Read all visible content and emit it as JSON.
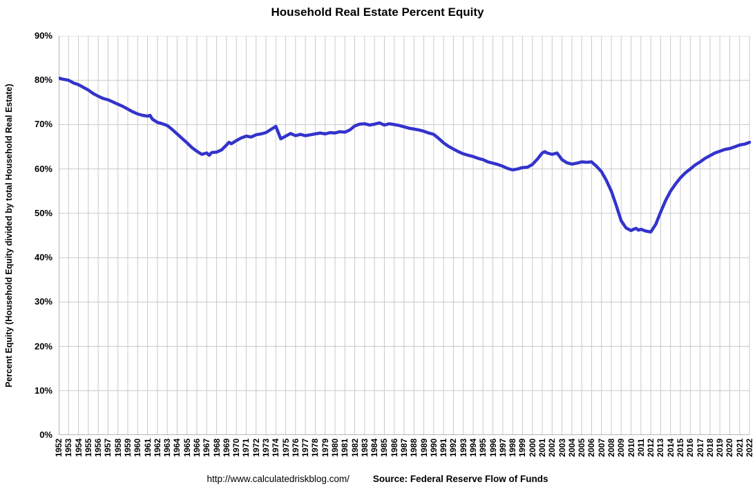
{
  "chart_data": {
    "type": "line",
    "title": "Household Real Estate Percent Equity",
    "ylabel": "Percent Equity (Household Equity divided by total Household Real Estate)",
    "xlabel": "",
    "ylim": [
      0,
      90
    ],
    "grid": true,
    "legend_position": "none",
    "line_color": "#3333cc",
    "grid_color": "#c9c9c9",
    "axis_color": "#8c8c8c",
    "yticks": [
      0,
      10,
      20,
      30,
      40,
      50,
      60,
      70,
      80,
      90
    ],
    "ytick_labels": [
      "0%",
      "10%",
      "20%",
      "30%",
      "40%",
      "50%",
      "60%",
      "70%",
      "80%",
      "90%"
    ],
    "x_ticks": [
      1952,
      1953,
      1954,
      1955,
      1956,
      1957,
      1958,
      1959,
      1960,
      1961,
      1962,
      1963,
      1964,
      1965,
      1966,
      1967,
      1968,
      1969,
      1970,
      1971,
      1972,
      1973,
      1974,
      1975,
      1976,
      1977,
      1978,
      1979,
      1980,
      1981,
      1982,
      1983,
      1984,
      1985,
      1986,
      1987,
      1988,
      1989,
      1990,
      1991,
      1992,
      1993,
      1994,
      1995,
      1996,
      1997,
      1998,
      1999,
      2000,
      2001,
      2002,
      2003,
      2004,
      2005,
      2006,
      2007,
      2008,
      2009,
      2010,
      2011,
      2012,
      2013,
      2014,
      2015,
      2016,
      2017,
      2018,
      2019,
      2020,
      2021,
      2022
    ],
    "xlim": [
      1952,
      2022
    ],
    "series": [
      {
        "name": "Household Real Estate Percent Equity",
        "points": [
          [
            1952,
            80.5
          ],
          [
            1952.5,
            80.2
          ],
          [
            1953,
            80.0
          ],
          [
            1953.5,
            79.4
          ],
          [
            1954,
            79.0
          ],
          [
            1954.5,
            78.4
          ],
          [
            1955,
            77.8
          ],
          [
            1955.5,
            77.0
          ],
          [
            1956,
            76.4
          ],
          [
            1956.5,
            75.9
          ],
          [
            1957,
            75.6
          ],
          [
            1957.5,
            75.1
          ],
          [
            1958,
            74.6
          ],
          [
            1958.5,
            74.1
          ],
          [
            1959,
            73.5
          ],
          [
            1959.5,
            72.9
          ],
          [
            1960,
            72.4
          ],
          [
            1960.5,
            72.1
          ],
          [
            1961,
            71.9
          ],
          [
            1961.25,
            72.1
          ],
          [
            1961.5,
            71.2
          ],
          [
            1962,
            70.5
          ],
          [
            1962.5,
            70.2
          ],
          [
            1963,
            69.8
          ],
          [
            1963.5,
            68.9
          ],
          [
            1964,
            67.9
          ],
          [
            1964.5,
            66.9
          ],
          [
            1965,
            65.9
          ],
          [
            1965.5,
            64.8
          ],
          [
            1966,
            64.0
          ],
          [
            1966.5,
            63.3
          ],
          [
            1967,
            63.6
          ],
          [
            1967.25,
            63.1
          ],
          [
            1967.5,
            63.7
          ],
          [
            1968,
            63.8
          ],
          [
            1968.5,
            64.3
          ],
          [
            1969,
            65.4
          ],
          [
            1969.25,
            66.0
          ],
          [
            1969.5,
            65.7
          ],
          [
            1970,
            66.4
          ],
          [
            1970.5,
            67.0
          ],
          [
            1971,
            67.4
          ],
          [
            1971.5,
            67.2
          ],
          [
            1972,
            67.7
          ],
          [
            1972.5,
            67.9
          ],
          [
            1973,
            68.2
          ],
          [
            1973.5,
            68.9
          ],
          [
            1974,
            69.6
          ],
          [
            1974.25,
            68.2
          ],
          [
            1974.5,
            66.8
          ],
          [
            1975,
            67.4
          ],
          [
            1975.5,
            68.0
          ],
          [
            1976,
            67.5
          ],
          [
            1976.5,
            67.8
          ],
          [
            1977,
            67.5
          ],
          [
            1977.5,
            67.7
          ],
          [
            1978,
            67.9
          ],
          [
            1978.5,
            68.1
          ],
          [
            1979,
            67.9
          ],
          [
            1979.5,
            68.2
          ],
          [
            1980,
            68.1
          ],
          [
            1980.5,
            68.4
          ],
          [
            1981,
            68.3
          ],
          [
            1981.5,
            68.8
          ],
          [
            1982,
            69.7
          ],
          [
            1982.5,
            70.1
          ],
          [
            1983,
            70.2
          ],
          [
            1983.5,
            69.9
          ],
          [
            1984,
            70.1
          ],
          [
            1984.5,
            70.4
          ],
          [
            1985,
            69.9
          ],
          [
            1985.5,
            70.2
          ],
          [
            1986,
            70.0
          ],
          [
            1986.5,
            69.8
          ],
          [
            1987,
            69.5
          ],
          [
            1987.5,
            69.2
          ],
          [
            1988,
            69.0
          ],
          [
            1988.5,
            68.8
          ],
          [
            1989,
            68.5
          ],
          [
            1989.5,
            68.1
          ],
          [
            1990,
            67.8
          ],
          [
            1990.5,
            66.9
          ],
          [
            1991,
            65.9
          ],
          [
            1991.5,
            65.1
          ],
          [
            1992,
            64.5
          ],
          [
            1992.5,
            63.9
          ],
          [
            1993,
            63.4
          ],
          [
            1993.5,
            63.1
          ],
          [
            1994,
            62.8
          ],
          [
            1994.5,
            62.4
          ],
          [
            1995,
            62.1
          ],
          [
            1995.5,
            61.6
          ],
          [
            1996,
            61.3
          ],
          [
            1996.5,
            61.0
          ],
          [
            1997,
            60.6
          ],
          [
            1997.5,
            60.1
          ],
          [
            1998,
            59.8
          ],
          [
            1998.5,
            60.0
          ],
          [
            1999,
            60.3
          ],
          [
            1999.5,
            60.4
          ],
          [
            2000,
            61.0
          ],
          [
            2000.5,
            62.2
          ],
          [
            2001,
            63.6
          ],
          [
            2001.25,
            63.9
          ],
          [
            2001.5,
            63.6
          ],
          [
            2002,
            63.3
          ],
          [
            2002.5,
            63.6
          ],
          [
            2003,
            62.1
          ],
          [
            2003.5,
            61.4
          ],
          [
            2004,
            61.1
          ],
          [
            2004.5,
            61.3
          ],
          [
            2005,
            61.6
          ],
          [
            2005.5,
            61.5
          ],
          [
            2006,
            61.6
          ],
          [
            2006.5,
            60.6
          ],
          [
            2007,
            59.4
          ],
          [
            2007.5,
            57.4
          ],
          [
            2008,
            55.0
          ],
          [
            2008.5,
            51.8
          ],
          [
            2009,
            48.3
          ],
          [
            2009.5,
            46.7
          ],
          [
            2010,
            46.1
          ],
          [
            2010.25,
            46.4
          ],
          [
            2010.5,
            46.6
          ],
          [
            2010.75,
            46.2
          ],
          [
            2011,
            46.4
          ],
          [
            2011.5,
            46.0
          ],
          [
            2012,
            45.8
          ],
          [
            2012.5,
            47.5
          ],
          [
            2013,
            50.3
          ],
          [
            2013.5,
            52.9
          ],
          [
            2014,
            55.0
          ],
          [
            2014.5,
            56.6
          ],
          [
            2015,
            58.0
          ],
          [
            2015.5,
            59.1
          ],
          [
            2016,
            60.0
          ],
          [
            2016.5,
            60.9
          ],
          [
            2017,
            61.6
          ],
          [
            2017.5,
            62.4
          ],
          [
            2018,
            63.0
          ],
          [
            2018.5,
            63.6
          ],
          [
            2019,
            64.0
          ],
          [
            2019.5,
            64.4
          ],
          [
            2020,
            64.6
          ],
          [
            2020.5,
            65.0
          ],
          [
            2021,
            65.4
          ],
          [
            2021.5,
            65.6
          ],
          [
            2022,
            66.0
          ]
        ]
      }
    ],
    "footer_url": "http://www.calculatedriskblog.com/",
    "footer_source": "Source: Federal Reserve Flow of Funds"
  }
}
